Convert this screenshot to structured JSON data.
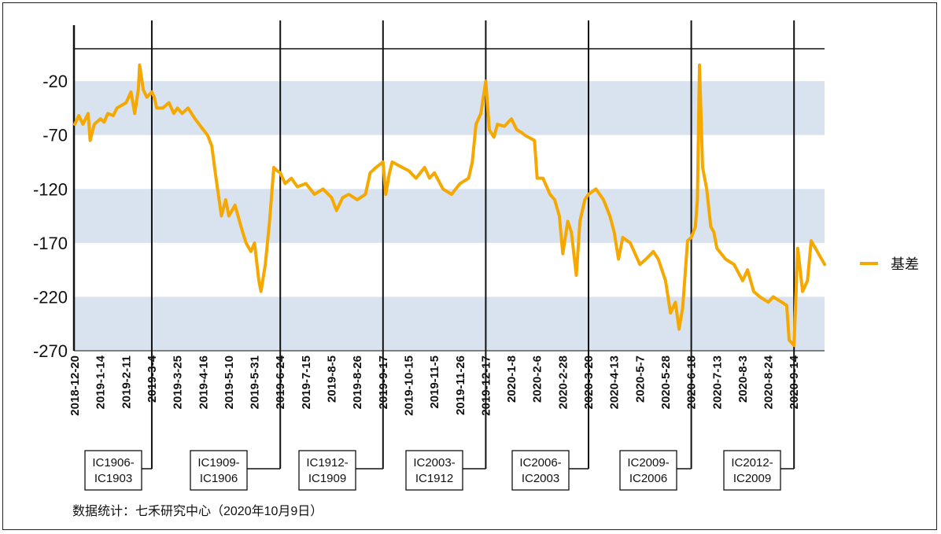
{
  "chart_data": {
    "type": "line",
    "ylim": [
      -270,
      10
    ],
    "yticks": [
      -20,
      -70,
      -120,
      -170,
      -220,
      -270
    ],
    "x_tick_labels": [
      "2018-12-20",
      "2019-1-14",
      "2019-2-11",
      "2019-3-4",
      "2019-3-25",
      "2019-4-16",
      "2019-5-10",
      "2019-5-31",
      "2019-6-24",
      "2019-7-15",
      "2019-8-5",
      "2019-8-26",
      "2019-9-17",
      "2019-10-15",
      "2019-11-5",
      "2019-11-26",
      "2019-12-17",
      "2020-1-8",
      "2020-2-6",
      "2020-2-28",
      "2020-3-20",
      "2020-4-13",
      "2020-5-7",
      "2020-5-28",
      "2020-6-18",
      "2020-7-13",
      "2020-8-3",
      "2020-8-24",
      "2020-9-14"
    ],
    "series": [
      {
        "name": "基差",
        "color": "#f5a800",
        "points": [
          [
            "2018-12-20",
            -60
          ],
          [
            "2018-12-24",
            -52
          ],
          [
            "2018-12-28",
            -60
          ],
          [
            "2019-1-2",
            -50
          ],
          [
            "2019-1-4",
            -75
          ],
          [
            "2019-1-8",
            -60
          ],
          [
            "2019-1-14",
            -55
          ],
          [
            "2019-1-18",
            -58
          ],
          [
            "2019-1-22",
            -50
          ],
          [
            "2019-1-28",
            -52
          ],
          [
            "2019-2-1",
            -45
          ],
          [
            "2019-2-11",
            -40
          ],
          [
            "2019-2-15",
            -30
          ],
          [
            "2019-2-18",
            -50
          ],
          [
            "2019-2-21",
            -28
          ],
          [
            "2019-2-22",
            -5
          ],
          [
            "2019-2-25",
            -28
          ],
          [
            "2019-2-28",
            -35
          ],
          [
            "2019-3-4",
            -30
          ],
          [
            "2019-3-6",
            -35
          ],
          [
            "2019-3-8",
            -45
          ],
          [
            "2019-3-13",
            -45
          ],
          [
            "2019-3-18",
            -40
          ],
          [
            "2019-3-22",
            -50
          ],
          [
            "2019-3-25",
            -45
          ],
          [
            "2019-3-29",
            -50
          ],
          [
            "2019-4-3",
            -45
          ],
          [
            "2019-4-9",
            -55
          ],
          [
            "2019-4-16",
            -65
          ],
          [
            "2019-4-20",
            -70
          ],
          [
            "2019-4-24",
            -80
          ],
          [
            "2019-4-28",
            -110
          ],
          [
            "2019-5-3",
            -145
          ],
          [
            "2019-5-7",
            -130
          ],
          [
            "2019-5-10",
            -145
          ],
          [
            "2019-5-15",
            -135
          ],
          [
            "2019-5-20",
            -155
          ],
          [
            "2019-5-24",
            -170
          ],
          [
            "2019-5-28",
            -178
          ],
          [
            "2019-5-31",
            -170
          ],
          [
            "2019-6-4",
            -205
          ],
          [
            "2019-6-6",
            -215
          ],
          [
            "2019-6-10",
            -190
          ],
          [
            "2019-6-14",
            -150
          ],
          [
            "2019-6-18",
            -100
          ],
          [
            "2019-6-21",
            -103
          ],
          [
            "2019-6-24",
            -105
          ],
          [
            "2019-6-28",
            -115
          ],
          [
            "2019-7-3",
            -110
          ],
          [
            "2019-7-8",
            -118
          ],
          [
            "2019-7-15",
            -115
          ],
          [
            "2019-7-22",
            -125
          ],
          [
            "2019-7-29",
            -120
          ],
          [
            "2019-8-5",
            -128
          ],
          [
            "2019-8-9",
            -140
          ],
          [
            "2019-8-14",
            -128
          ],
          [
            "2019-8-19",
            -125
          ],
          [
            "2019-8-26",
            -130
          ],
          [
            "2019-9-2",
            -125
          ],
          [
            "2019-9-6",
            -105
          ],
          [
            "2019-9-11",
            -100
          ],
          [
            "2019-9-17",
            -95
          ],
          [
            "2019-9-20",
            -125
          ],
          [
            "2019-9-24",
            -105
          ],
          [
            "2019-9-27",
            -95
          ],
          [
            "2019-10-8",
            -100
          ],
          [
            "2019-10-15",
            -103
          ],
          [
            "2019-10-21",
            -110
          ],
          [
            "2019-10-28",
            -100
          ],
          [
            "2019-11-1",
            -110
          ],
          [
            "2019-11-5",
            -105
          ],
          [
            "2019-11-12",
            -120
          ],
          [
            "2019-11-19",
            -125
          ],
          [
            "2019-11-26",
            -115
          ],
          [
            "2019-12-3",
            -110
          ],
          [
            "2019-12-6",
            -95
          ],
          [
            "2019-12-9",
            -60
          ],
          [
            "2019-12-13",
            -50
          ],
          [
            "2019-12-17",
            -20
          ],
          [
            "2019-12-20",
            -65
          ],
          [
            "2019-12-24",
            -72
          ],
          [
            "2019-12-27",
            -60
          ],
          [
            "2020-1-2",
            -62
          ],
          [
            "2020-1-8",
            -55
          ],
          [
            "2020-1-14",
            -65
          ],
          [
            "2020-1-20",
            -68
          ],
          [
            "2020-1-23",
            -70
          ],
          [
            "2020-2-3",
            -75
          ],
          [
            "2020-2-6",
            -110
          ],
          [
            "2020-2-11",
            -110
          ],
          [
            "2020-2-17",
            -125
          ],
          [
            "2020-2-21",
            -130
          ],
          [
            "2020-2-25",
            -145
          ],
          [
            "2020-2-28",
            -180
          ],
          [
            "2020-3-3",
            -150
          ],
          [
            "2020-3-6",
            -160
          ],
          [
            "2020-3-10",
            -200
          ],
          [
            "2020-3-13",
            -150
          ],
          [
            "2020-3-17",
            -130
          ],
          [
            "2020-3-20",
            -125
          ],
          [
            "2020-3-27",
            -120
          ],
          [
            "2020-4-3",
            -130
          ],
          [
            "2020-4-9",
            -145
          ],
          [
            "2020-4-13",
            -160
          ],
          [
            "2020-4-17",
            -185
          ],
          [
            "2020-4-21",
            -165
          ],
          [
            "2020-4-28",
            -170
          ],
          [
            "2020-5-7",
            -190
          ],
          [
            "2020-5-12",
            -185
          ],
          [
            "2020-5-18",
            -178
          ],
          [
            "2020-5-22",
            -185
          ],
          [
            "2020-5-28",
            -205
          ],
          [
            "2020-6-1",
            -235
          ],
          [
            "2020-6-5",
            -225
          ],
          [
            "2020-6-8",
            -250
          ],
          [
            "2020-6-11",
            -230
          ],
          [
            "2020-6-15",
            -168
          ],
          [
            "2020-6-18",
            -165
          ],
          [
            "2020-6-22",
            -155
          ],
          [
            "2020-6-24",
            -130
          ],
          [
            "2020-6-26",
            -5
          ],
          [
            "2020-6-29",
            -100
          ],
          [
            "2020-7-3",
            -120
          ],
          [
            "2020-7-7",
            -155
          ],
          [
            "2020-7-10",
            -160
          ],
          [
            "2020-7-13",
            -175
          ],
          [
            "2020-7-20",
            -185
          ],
          [
            "2020-7-27",
            -190
          ],
          [
            "2020-8-3",
            -205
          ],
          [
            "2020-8-7",
            -195
          ],
          [
            "2020-8-12",
            -215
          ],
          [
            "2020-8-17",
            -220
          ],
          [
            "2020-8-24",
            -225
          ],
          [
            "2020-8-28",
            -220
          ],
          [
            "2020-9-4",
            -225
          ],
          [
            "2020-9-8",
            -228
          ],
          [
            "2020-9-10",
            -260
          ],
          [
            "2020-9-14",
            -265
          ],
          [
            "2020-9-17",
            -175
          ],
          [
            "2020-9-21",
            -215
          ],
          [
            "2020-9-25",
            -205
          ],
          [
            "2020-9-28",
            -168
          ],
          [
            "2020-10-9",
            -190
          ]
        ]
      }
    ],
    "contract_rolls": [
      {
        "date": "2019-3-4",
        "label_line1": "IC1906-",
        "label_line2": "IC1903"
      },
      {
        "date": "2019-6-24",
        "label_line1": "IC1909-",
        "label_line2": "IC1906"
      },
      {
        "date": "2019-9-17",
        "label_line1": "IC1912-",
        "label_line2": "IC1909"
      },
      {
        "date": "2019-12-17",
        "label_line1": "IC2003-",
        "label_line2": "IC1912"
      },
      {
        "date": "2020-3-20",
        "label_line1": "IC2006-",
        "label_line2": "IC2003"
      },
      {
        "date": "2020-6-18",
        "label_line1": "IC2009-",
        "label_line2": "IC2006"
      },
      {
        "date": "2020-9-14",
        "label_line1": "IC2012-",
        "label_line2": "IC2009"
      }
    ],
    "band_color": "#d9e3f0",
    "legend_position": "right",
    "source_text": "数据统计：七禾研究中心（2020年10月9日）"
  }
}
